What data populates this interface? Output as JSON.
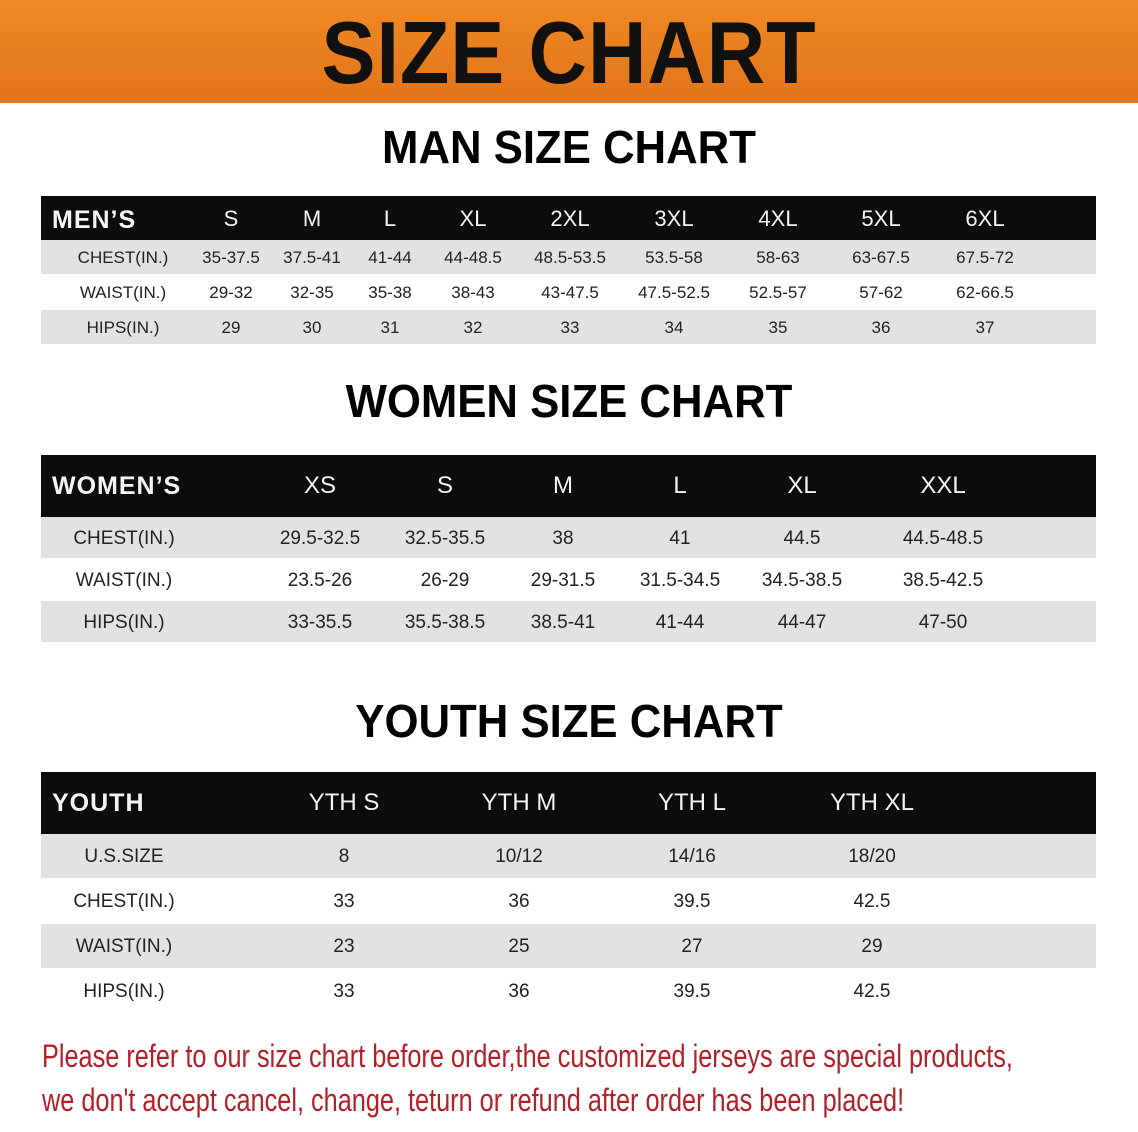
{
  "banner": {
    "title": "SIZE CHART",
    "color": "#e8801f"
  },
  "men": {
    "title": "MAN SIZE CHART",
    "header": [
      "MEN’S",
      "S",
      "M",
      "L",
      "XL",
      "2XL",
      "3XL",
      "4XL",
      "5XL",
      "6XL"
    ],
    "rows": [
      [
        "CHEST(IN.)",
        "35-37.5",
        "37.5-41",
        "41-44",
        "44-48.5",
        "48.5-53.5",
        "53.5-58",
        "58-63",
        "63-67.5",
        "67.5-72"
      ],
      [
        "WAIST(IN.)",
        "29-32",
        "32-35",
        "35-38",
        "38-43",
        "43-47.5",
        "47.5-52.5",
        "52.5-57",
        "57-62",
        "62-66.5"
      ],
      [
        "HIPS(IN.)",
        "29",
        "30",
        "31",
        "32",
        "33",
        "34",
        "35",
        "36",
        "37"
      ]
    ]
  },
  "women": {
    "title": "WOMEN SIZE CHART",
    "header": [
      "WOMEN’S",
      "XS",
      "S",
      "M",
      "L",
      "XL",
      "XXL"
    ],
    "rows": [
      [
        "CHEST(IN.)",
        "29.5-32.5",
        "32.5-35.5",
        "38",
        "41",
        "44.5",
        "44.5-48.5"
      ],
      [
        "WAIST(IN.)",
        "23.5-26",
        "26-29",
        "29-31.5",
        "31.5-34.5",
        "34.5-38.5",
        "38.5-42.5"
      ],
      [
        "HIPS(IN.)",
        "33-35.5",
        "35.5-38.5",
        "38.5-41",
        "41-44",
        "44-47",
        "47-50"
      ]
    ]
  },
  "youth": {
    "title": "YOUTH SIZE CHART",
    "header": [
      "YOUTH",
      "YTH S",
      "YTH M",
      "YTH L",
      "YTH XL"
    ],
    "rows": [
      [
        "U.S.SIZE",
        "8",
        "10/12",
        "14/16",
        "18/20"
      ],
      [
        "CHEST(IN.)",
        "33",
        "36",
        "39.5",
        "42.5"
      ],
      [
        "WAIST(IN.)",
        "23",
        "25",
        "27",
        "29"
      ],
      [
        "HIPS(IN.)",
        "33",
        "36",
        "39.5",
        "42.5"
      ]
    ]
  },
  "footer": {
    "line1": "Please refer to our size chart before order,the customized jerseys are special products,",
    "line2": "we don't accept cancel, change, teturn or refund after order has been placed!",
    "color": "#b3202a"
  }
}
